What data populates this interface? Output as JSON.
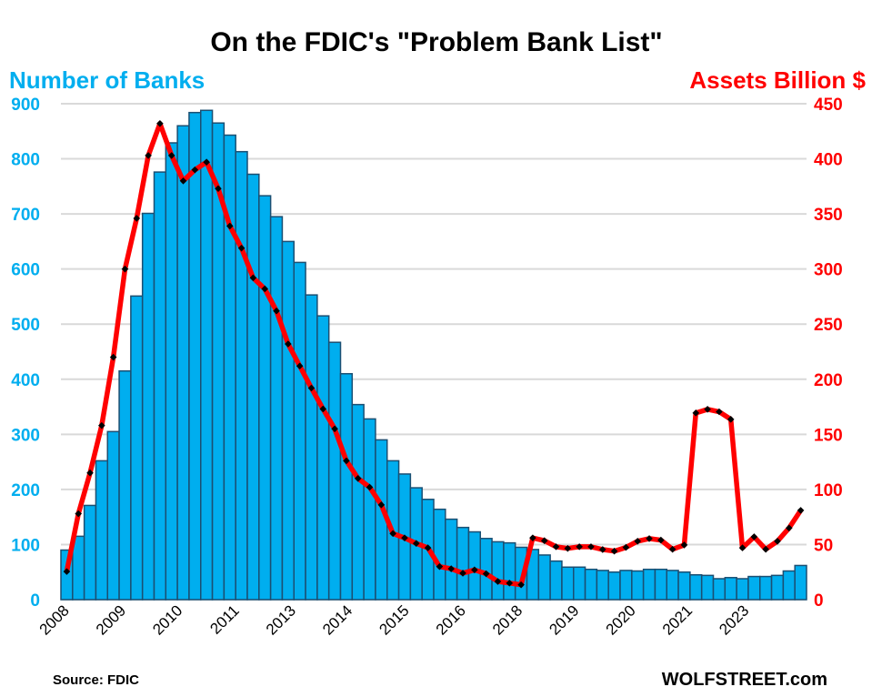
{
  "chart_data": {
    "type": "bar",
    "title": "On the FDIC's \"Problem Bank List\"",
    "ylabel_left": "Number of Banks",
    "ylabel_right": "Assets Billion $",
    "source": "Source: FDIC",
    "watermark": "WOLFSTREET.com",
    "ylim_left": [
      0,
      900
    ],
    "ylim_right": [
      0,
      450
    ],
    "yticks_left": [
      "0",
      "100",
      "200",
      "300",
      "400",
      "500",
      "600",
      "700",
      "800",
      "900"
    ],
    "yticks_right": [
      "0",
      "50",
      "100",
      "150",
      "200",
      "250",
      "300",
      "350",
      "400",
      "450"
    ],
    "xtick_labels": [
      "2008",
      "2009",
      "2010",
      "2011",
      "2013",
      "2014",
      "2015",
      "2016",
      "2018",
      "2019",
      "2020",
      "2021",
      "2023"
    ],
    "x_range": "2008 Q1 - 2023 Q4 (quarterly)",
    "grid": true,
    "colors": {
      "bars": "#00AEEF",
      "bar_edge": "#1B4F72",
      "line": "#FF0000",
      "markers": "#000000",
      "left_axis": "#00AEEF",
      "right_axis": "#FF0000"
    },
    "series": [
      {
        "name": "Number of Banks",
        "type": "bar",
        "axis": "left",
        "values": [
          90,
          115,
          171,
          252,
          305,
          415,
          551,
          701,
          776,
          829,
          860,
          884,
          888,
          865,
          843,
          813,
          772,
          733,
          695,
          650,
          612,
          553,
          515,
          467,
          410,
          354,
          328,
          290,
          252,
          228,
          203,
          182,
          164,
          146,
          131,
          123,
          111,
          105,
          103,
          95,
          91,
          81,
          70,
          59,
          59,
          55,
          53,
          50,
          53,
          52,
          55,
          55,
          53,
          50,
          45,
          44,
          38,
          40,
          38,
          42,
          42,
          44,
          52,
          62
        ]
      },
      {
        "name": "Assets Billion $",
        "type": "line",
        "axis": "right",
        "values": [
          25.5,
          78,
          115,
          158,
          220,
          300,
          346,
          403,
          432,
          403,
          380,
          390,
          397,
          373,
          339,
          319,
          292,
          282,
          262,
          232,
          212,
          192,
          173,
          155,
          126,
          110,
          102,
          86,
          60,
          56,
          51,
          47,
          30,
          28,
          24,
          27,
          23.5,
          16.5,
          15,
          13.5,
          56,
          53.5,
          48,
          46.5,
          48,
          48,
          45.5,
          44,
          47.4,
          53,
          55.4,
          54,
          45.7,
          49.6,
          169.4,
          172.7,
          170.5,
          163.6,
          47,
          57,
          45.7,
          53,
          65,
          81
        ]
      }
    ]
  }
}
